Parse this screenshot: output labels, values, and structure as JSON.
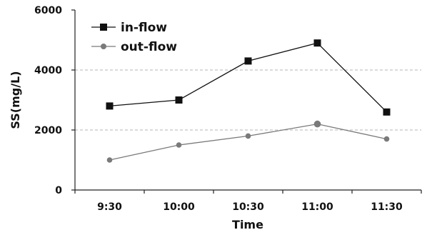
{
  "chart_data": {
    "type": "line",
    "title": "",
    "xlabel": "Time",
    "ylabel": "SS(mg/L)",
    "categories": [
      "9:30",
      "10:00",
      "10:30",
      "11:00",
      "11:30"
    ],
    "ylim": [
      0,
      6000
    ],
    "yticks": [
      "0",
      "2000",
      "4000",
      "6000"
    ],
    "grid": "horizontal-dashed",
    "legend": "top-left",
    "series": [
      {
        "name": "in-flow",
        "values": [
          2800,
          3000,
          4300,
          4900,
          2600
        ],
        "color": "#111111",
        "marker": "square"
      },
      {
        "name": "out-flow",
        "values": [
          1000,
          1500,
          1800,
          2200,
          1700
        ],
        "color": "#7a7a7a",
        "marker": "circle"
      }
    ]
  }
}
